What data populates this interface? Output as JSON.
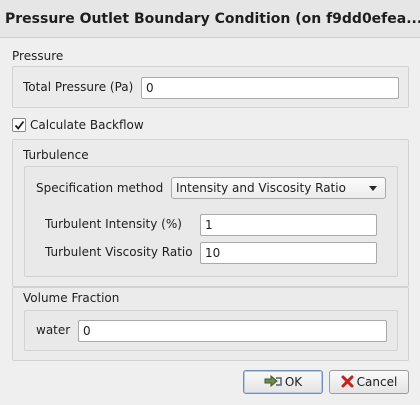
{
  "window": {
    "title": "Pressure Outlet Boundary Condition (on f9dd0efea..."
  },
  "pressure": {
    "section_label": "Pressure",
    "total_pressure_label": "Total Pressure (Pa)",
    "total_pressure_value": "0"
  },
  "backflow": {
    "label": "Calculate Backflow",
    "checked": true
  },
  "turbulence": {
    "section_label": "Turbulence",
    "method_label": "Specification method",
    "method_value": "Intensity and Viscosity Ratio",
    "intensity_label": "Turbulent Intensity (%)",
    "intensity_value": "1",
    "viscosity_label": "Turbulent Viscosity Ratio",
    "viscosity_value": "10"
  },
  "volume_fraction": {
    "section_label": "Volume Fraction",
    "water_label": "water",
    "water_value": "0"
  },
  "buttons": {
    "ok_label": "OK",
    "ok_icon": "check-icon",
    "cancel_label": "Cancel",
    "cancel_icon": "cross-icon"
  }
}
